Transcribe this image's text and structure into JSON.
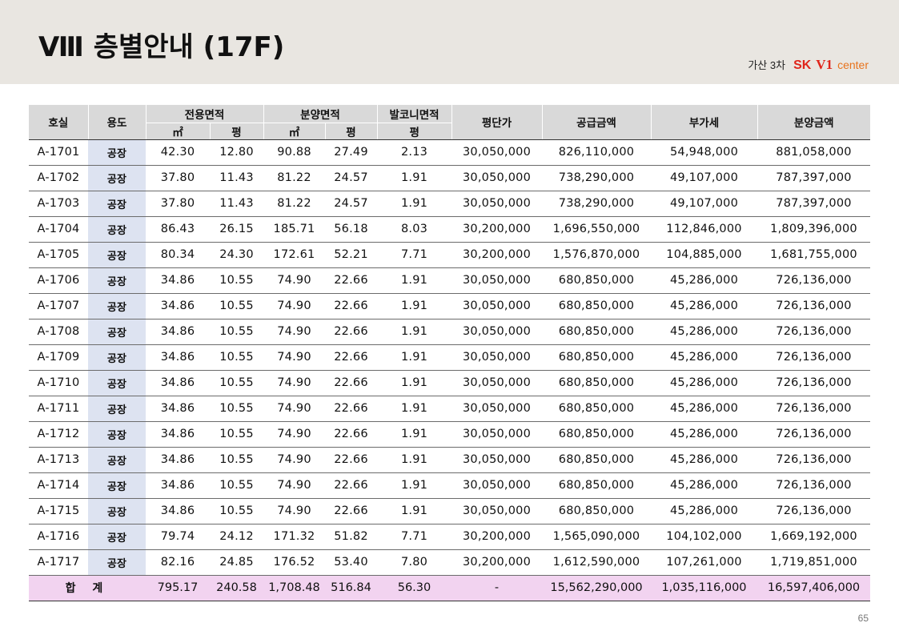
{
  "header": {
    "title": "Ⅷ 층별안내 (17F)",
    "brand": {
      "site": "가산 3차",
      "sk": "SK",
      "v1": "V1",
      "center": "center"
    }
  },
  "table": {
    "headers": {
      "room": "호실",
      "use": "용도",
      "exclusive_area": "전용면적",
      "sale_area": "분양면적",
      "balcony_area": "발코니면적",
      "price_per_pyeong": "평단가",
      "supply_amount": "공급금액",
      "vat": "부가세",
      "sale_amount": "분양금액",
      "unit_m2": "㎡",
      "unit_pyeong": "평"
    },
    "rows": [
      [
        "A-1701",
        "공장",
        "42.30",
        "12.80",
        "90.88",
        "27.49",
        "2.13",
        "30,050,000",
        "826,110,000",
        "54,948,000",
        "881,058,000"
      ],
      [
        "A-1702",
        "공장",
        "37.80",
        "11.43",
        "81.22",
        "24.57",
        "1.91",
        "30,050,000",
        "738,290,000",
        "49,107,000",
        "787,397,000"
      ],
      [
        "A-1703",
        "공장",
        "37.80",
        "11.43",
        "81.22",
        "24.57",
        "1.91",
        "30,050,000",
        "738,290,000",
        "49,107,000",
        "787,397,000"
      ],
      [
        "A-1704",
        "공장",
        "86.43",
        "26.15",
        "185.71",
        "56.18",
        "8.03",
        "30,200,000",
        "1,696,550,000",
        "112,846,000",
        "1,809,396,000"
      ],
      [
        "A-1705",
        "공장",
        "80.34",
        "24.30",
        "172.61",
        "52.21",
        "7.71",
        "30,200,000",
        "1,576,870,000",
        "104,885,000",
        "1,681,755,000"
      ],
      [
        "A-1706",
        "공장",
        "34.86",
        "10.55",
        "74.90",
        "22.66",
        "1.91",
        "30,050,000",
        "680,850,000",
        "45,286,000",
        "726,136,000"
      ],
      [
        "A-1707",
        "공장",
        "34.86",
        "10.55",
        "74.90",
        "22.66",
        "1.91",
        "30,050,000",
        "680,850,000",
        "45,286,000",
        "726,136,000"
      ],
      [
        "A-1708",
        "공장",
        "34.86",
        "10.55",
        "74.90",
        "22.66",
        "1.91",
        "30,050,000",
        "680,850,000",
        "45,286,000",
        "726,136,000"
      ],
      [
        "A-1709",
        "공장",
        "34.86",
        "10.55",
        "74.90",
        "22.66",
        "1.91",
        "30,050,000",
        "680,850,000",
        "45,286,000",
        "726,136,000"
      ],
      [
        "A-1710",
        "공장",
        "34.86",
        "10.55",
        "74.90",
        "22.66",
        "1.91",
        "30,050,000",
        "680,850,000",
        "45,286,000",
        "726,136,000"
      ],
      [
        "A-1711",
        "공장",
        "34.86",
        "10.55",
        "74.90",
        "22.66",
        "1.91",
        "30,050,000",
        "680,850,000",
        "45,286,000",
        "726,136,000"
      ],
      [
        "A-1712",
        "공장",
        "34.86",
        "10.55",
        "74.90",
        "22.66",
        "1.91",
        "30,050,000",
        "680,850,000",
        "45,286,000",
        "726,136,000"
      ],
      [
        "A-1713",
        "공장",
        "34.86",
        "10.55",
        "74.90",
        "22.66",
        "1.91",
        "30,050,000",
        "680,850,000",
        "45,286,000",
        "726,136,000"
      ],
      [
        "A-1714",
        "공장",
        "34.86",
        "10.55",
        "74.90",
        "22.66",
        "1.91",
        "30,050,000",
        "680,850,000",
        "45,286,000",
        "726,136,000"
      ],
      [
        "A-1715",
        "공장",
        "34.86",
        "10.55",
        "74.90",
        "22.66",
        "1.91",
        "30,050,000",
        "680,850,000",
        "45,286,000",
        "726,136,000"
      ],
      [
        "A-1716",
        "공장",
        "79.74",
        "24.12",
        "171.32",
        "51.82",
        "7.71",
        "30,200,000",
        "1,565,090,000",
        "104,102,000",
        "1,669,192,000"
      ],
      [
        "A-1717",
        "공장",
        "82.16",
        "24.85",
        "176.52",
        "53.40",
        "7.80",
        "30,200,000",
        "1,612,590,000",
        "107,261,000",
        "1,719,851,000"
      ]
    ],
    "total": {
      "label": "합 계",
      "values": [
        "795.17",
        "240.58",
        "1,708.48",
        "516.84",
        "56.30",
        "-",
        "15,562,290,000",
        "1,035,116,000",
        "16,597,406,000"
      ]
    }
  },
  "footer": {
    "page_number": "65"
  }
}
